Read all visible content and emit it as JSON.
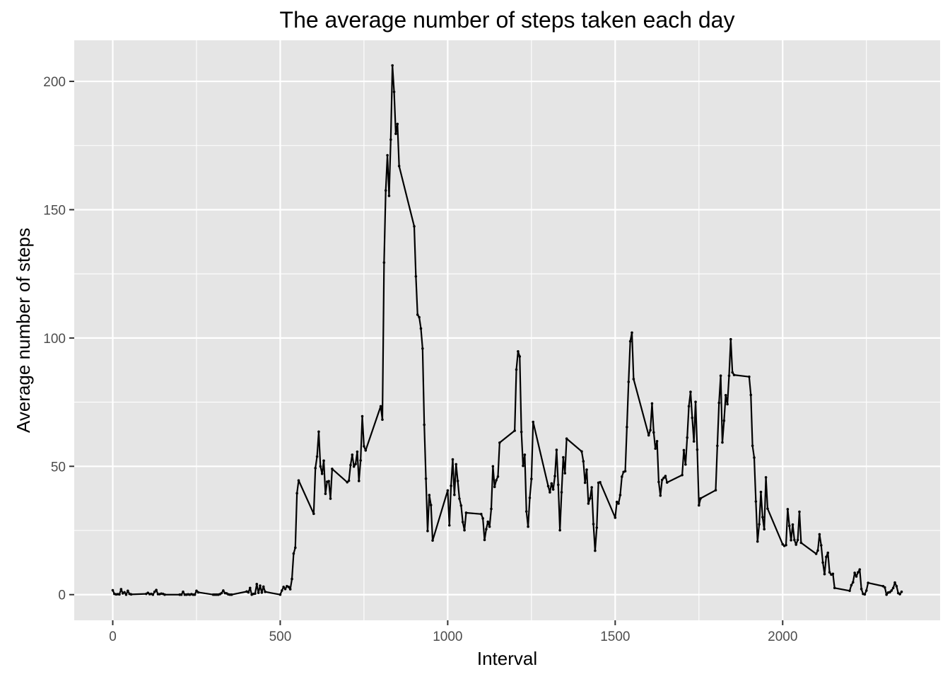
{
  "chart_data": {
    "type": "line",
    "title": "The average number of steps taken each day",
    "xlabel": "Interval",
    "ylabel": "Average number of steps",
    "xlim": [
      -115,
      2470
    ],
    "ylim": [
      -10,
      216
    ],
    "x_ticks": [
      0,
      500,
      1000,
      1500,
      2000
    ],
    "y_ticks": [
      0,
      50,
      100,
      150,
      200
    ],
    "x_tick_labels": [
      "0",
      "500",
      "1000",
      "1500",
      "2000"
    ],
    "y_tick_labels": [
      "0",
      "50",
      "100",
      "150",
      "200"
    ],
    "grid": true,
    "legend": "none",
    "colors": {
      "panel": "#e5e5e5",
      "grid": "#ffffff",
      "line": "#000000",
      "tick": "#333333"
    },
    "series": [
      {
        "points": [
          [
            0,
            1.7
          ],
          [
            5,
            0.3
          ],
          [
            10,
            0.1
          ],
          [
            15,
            0.2
          ],
          [
            20,
            0.1
          ],
          [
            25,
            2.1
          ],
          [
            30,
            0.5
          ],
          [
            35,
            0.9
          ],
          [
            40,
            0.0
          ],
          [
            45,
            1.5
          ],
          [
            50,
            0.3
          ],
          [
            55,
            0.1
          ],
          [
            100,
            0.3
          ],
          [
            105,
            0.7
          ],
          [
            110,
            0.2
          ],
          [
            115,
            0.3
          ],
          [
            120,
            0.0
          ],
          [
            125,
            1.1
          ],
          [
            130,
            1.8
          ],
          [
            135,
            0.2
          ],
          [
            140,
            0.2
          ],
          [
            145,
            0.4
          ],
          [
            150,
            0.3
          ],
          [
            155,
            0.0
          ],
          [
            200,
            0.0
          ],
          [
            205,
            0.0
          ],
          [
            210,
            1.1
          ],
          [
            215,
            0.0
          ],
          [
            220,
            0.0
          ],
          [
            225,
            0.1
          ],
          [
            230,
            0.0
          ],
          [
            235,
            0.2
          ],
          [
            240,
            0.0
          ],
          [
            245,
            0.0
          ],
          [
            250,
            1.5
          ],
          [
            255,
            0.9
          ],
          [
            300,
            0.0
          ],
          [
            305,
            0.0
          ],
          [
            310,
            0.0
          ],
          [
            315,
            0.0
          ],
          [
            320,
            0.2
          ],
          [
            325,
            0.6
          ],
          [
            330,
            1.6
          ],
          [
            335,
            0.6
          ],
          [
            340,
            0.5
          ],
          [
            345,
            0.1
          ],
          [
            350,
            0.0
          ],
          [
            355,
            0.0
          ],
          [
            400,
            1.2
          ],
          [
            405,
            0.9
          ],
          [
            410,
            2.6
          ],
          [
            415,
            0.0
          ],
          [
            420,
            0.3
          ],
          [
            425,
            0.4
          ],
          [
            430,
            4.1
          ],
          [
            435,
            0.7
          ],
          [
            440,
            3.5
          ],
          [
            445,
            0.8
          ],
          [
            450,
            3.1
          ],
          [
            455,
            1.1
          ],
          [
            500,
            0.0
          ],
          [
            505,
            1.6
          ],
          [
            510,
            3.0
          ],
          [
            515,
            2.2
          ],
          [
            520,
            3.3
          ],
          [
            525,
            3.0
          ],
          [
            530,
            2.1
          ],
          [
            535,
            6.1
          ],
          [
            540,
            16.0
          ],
          [
            545,
            18.3
          ],
          [
            550,
            39.5
          ],
          [
            555,
            44.5
          ],
          [
            600,
            31.5
          ],
          [
            605,
            49.3
          ],
          [
            610,
            53.8
          ],
          [
            615,
            63.5
          ],
          [
            620,
            50.0
          ],
          [
            625,
            47.1
          ],
          [
            630,
            52.2
          ],
          [
            635,
            39.3
          ],
          [
            640,
            44.0
          ],
          [
            645,
            44.2
          ],
          [
            650,
            37.4
          ],
          [
            655,
            49.0
          ],
          [
            700,
            43.8
          ],
          [
            705,
            44.4
          ],
          [
            710,
            50.5
          ],
          [
            715,
            54.5
          ],
          [
            720,
            49.9
          ],
          [
            725,
            50.9
          ],
          [
            730,
            55.7
          ],
          [
            735,
            44.3
          ],
          [
            740,
            52.3
          ],
          [
            745,
            69.5
          ],
          [
            750,
            57.8
          ],
          [
            755,
            56.2
          ],
          [
            800,
            73.4
          ],
          [
            805,
            68.2
          ],
          [
            810,
            129.4
          ],
          [
            815,
            157.5
          ],
          [
            820,
            171.2
          ],
          [
            825,
            155.4
          ],
          [
            830,
            177.3
          ],
          [
            835,
            206.2
          ],
          [
            840,
            195.9
          ],
          [
            845,
            179.6
          ],
          [
            850,
            183.4
          ],
          [
            855,
            167.0
          ],
          [
            900,
            143.5
          ],
          [
            905,
            124.0
          ],
          [
            910,
            109.1
          ],
          [
            915,
            108.1
          ],
          [
            920,
            103.7
          ],
          [
            925,
            95.9
          ],
          [
            930,
            66.2
          ],
          [
            935,
            45.2
          ],
          [
            940,
            24.8
          ],
          [
            945,
            38.8
          ],
          [
            950,
            34.9
          ],
          [
            955,
            21.1
          ],
          [
            1000,
            40.6
          ],
          [
            1005,
            27.0
          ],
          [
            1010,
            42.4
          ],
          [
            1015,
            52.7
          ],
          [
            1020,
            38.9
          ],
          [
            1025,
            50.8
          ],
          [
            1030,
            44.3
          ],
          [
            1035,
            37.4
          ],
          [
            1040,
            34.7
          ],
          [
            1045,
            28.3
          ],
          [
            1050,
            25.1
          ],
          [
            1055,
            31.9
          ],
          [
            1100,
            31.4
          ],
          [
            1105,
            29.7
          ],
          [
            1110,
            21.3
          ],
          [
            1115,
            25.5
          ],
          [
            1120,
            28.4
          ],
          [
            1125,
            26.5
          ],
          [
            1130,
            33.4
          ],
          [
            1135,
            50.0
          ],
          [
            1140,
            42.0
          ],
          [
            1145,
            44.6
          ],
          [
            1150,
            46.0
          ],
          [
            1155,
            59.2
          ],
          [
            1200,
            63.9
          ],
          [
            1205,
            87.7
          ],
          [
            1210,
            94.8
          ],
          [
            1215,
            92.8
          ],
          [
            1220,
            63.4
          ],
          [
            1225,
            50.2
          ],
          [
            1230,
            54.5
          ],
          [
            1235,
            32.4
          ],
          [
            1240,
            26.5
          ],
          [
            1245,
            37.7
          ],
          [
            1250,
            45.1
          ],
          [
            1255,
            67.3
          ],
          [
            1300,
            42.3
          ],
          [
            1305,
            39.9
          ],
          [
            1310,
            43.3
          ],
          [
            1315,
            40.98
          ],
          [
            1320,
            46.2
          ],
          [
            1325,
            56.4
          ],
          [
            1330,
            42.8
          ],
          [
            1335,
            25.1
          ],
          [
            1340,
            39.9
          ],
          [
            1345,
            53.5
          ],
          [
            1350,
            47.3
          ],
          [
            1355,
            60.8
          ],
          [
            1400,
            55.8
          ],
          [
            1405,
            51.96
          ],
          [
            1410,
            43.6
          ],
          [
            1415,
            48.7
          ],
          [
            1420,
            35.5
          ],
          [
            1425,
            37.5
          ],
          [
            1430,
            41.8
          ],
          [
            1435,
            27.5
          ],
          [
            1440,
            17.1
          ],
          [
            1445,
            26.1
          ],
          [
            1450,
            43.6
          ],
          [
            1455,
            43.8
          ],
          [
            1500,
            30.0
          ],
          [
            1505,
            36.1
          ],
          [
            1510,
            35.5
          ],
          [
            1515,
            38.8
          ],
          [
            1520,
            45.96
          ],
          [
            1525,
            47.8
          ],
          [
            1530,
            48.1
          ],
          [
            1535,
            65.3
          ],
          [
            1540,
            82.9
          ],
          [
            1545,
            98.7
          ],
          [
            1550,
            102.1
          ],
          [
            1555,
            84.0
          ],
          [
            1600,
            62.1
          ],
          [
            1605,
            64.1
          ],
          [
            1610,
            74.5
          ],
          [
            1615,
            63.2
          ],
          [
            1620,
            56.9
          ],
          [
            1625,
            59.8
          ],
          [
            1630,
            43.9
          ],
          [
            1635,
            38.6
          ],
          [
            1640,
            44.7
          ],
          [
            1645,
            45.5
          ],
          [
            1650,
            46.2
          ],
          [
            1655,
            43.7
          ],
          [
            1700,
            46.6
          ],
          [
            1705,
            56.3
          ],
          [
            1710,
            50.7
          ],
          [
            1715,
            61.2
          ],
          [
            1720,
            73.4
          ],
          [
            1725,
            79.0
          ],
          [
            1730,
            68.9
          ],
          [
            1735,
            59.7
          ],
          [
            1740,
            75.1
          ],
          [
            1745,
            56.5
          ],
          [
            1750,
            34.8
          ],
          [
            1755,
            37.5
          ],
          [
            1800,
            40.7
          ],
          [
            1805,
            58.0
          ],
          [
            1810,
            74.7
          ],
          [
            1815,
            85.3
          ],
          [
            1820,
            59.3
          ],
          [
            1825,
            67.8
          ],
          [
            1830,
            77.7
          ],
          [
            1835,
            74.2
          ],
          [
            1840,
            85.3
          ],
          [
            1845,
            99.5
          ],
          [
            1850,
            86.6
          ],
          [
            1855,
            85.6
          ],
          [
            1900,
            84.9
          ],
          [
            1905,
            77.8
          ],
          [
            1910,
            58.0
          ],
          [
            1915,
            53.4
          ],
          [
            1920,
            36.3
          ],
          [
            1925,
            20.7
          ],
          [
            1930,
            27.4
          ],
          [
            1935,
            40.0
          ],
          [
            1940,
            30.2
          ],
          [
            1945,
            25.5
          ],
          [
            1950,
            45.7
          ],
          [
            1955,
            33.5
          ],
          [
            2000,
            19.6
          ],
          [
            2005,
            19.0
          ],
          [
            2010,
            19.3
          ],
          [
            2015,
            33.3
          ],
          [
            2020,
            26.8
          ],
          [
            2025,
            21.2
          ],
          [
            2030,
            27.3
          ],
          [
            2035,
            21.3
          ],
          [
            2040,
            19.5
          ],
          [
            2045,
            21.3
          ],
          [
            2050,
            32.3
          ],
          [
            2055,
            20.2
          ],
          [
            2100,
            15.9
          ],
          [
            2105,
            17.2
          ],
          [
            2110,
            23.5
          ],
          [
            2115,
            19.2
          ],
          [
            2120,
            12.5
          ],
          [
            2125,
            8.0
          ],
          [
            2130,
            14.7
          ],
          [
            2135,
            16.3
          ],
          [
            2140,
            8.7
          ],
          [
            2145,
            7.8
          ],
          [
            2150,
            8.1
          ],
          [
            2155,
            2.6
          ],
          [
            2200,
            1.5
          ],
          [
            2205,
            3.7
          ],
          [
            2210,
            4.8
          ],
          [
            2215,
            8.5
          ],
          [
            2220,
            7.1
          ],
          [
            2225,
            8.7
          ],
          [
            2230,
            9.8
          ],
          [
            2235,
            2.2
          ],
          [
            2240,
            0.3
          ],
          [
            2245,
            0.1
          ],
          [
            2250,
            1.6
          ],
          [
            2255,
            4.6
          ],
          [
            2300,
            3.3
          ],
          [
            2305,
            2.8
          ],
          [
            2310,
            0.0
          ],
          [
            2315,
            0.8
          ],
          [
            2320,
            0.96
          ],
          [
            2325,
            1.6
          ],
          [
            2330,
            2.6
          ],
          [
            2335,
            4.7
          ],
          [
            2340,
            3.3
          ],
          [
            2345,
            0.6
          ],
          [
            2350,
            0.2
          ],
          [
            2355,
            1.1
          ]
        ]
      }
    ]
  }
}
